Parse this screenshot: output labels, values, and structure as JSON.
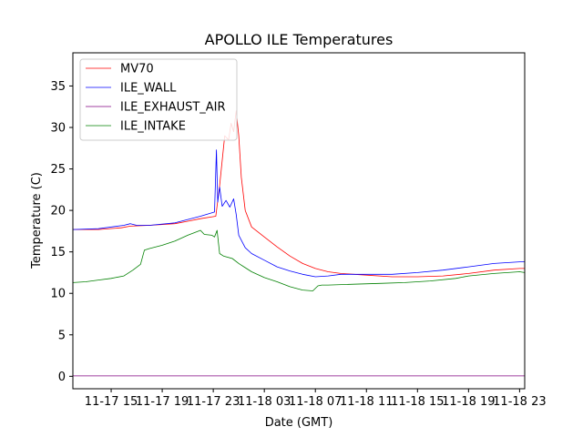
{
  "chart_data": {
    "type": "line",
    "title": "APOLLO ILE Temperatures",
    "xlabel": "Date (GMT)",
    "ylabel": "Temperature (C)",
    "x_unit": "hours since 11-17 12:00 GMT",
    "xlim": [
      0,
      35.4
    ],
    "ylim": [
      -1.5,
      39
    ],
    "grid": false,
    "legend": "upper-left",
    "x_ticks": [
      {
        "x": 3,
        "label": "11-17 15"
      },
      {
        "x": 7,
        "label": "11-17 19"
      },
      {
        "x": 11,
        "label": "11-17 23"
      },
      {
        "x": 15,
        "label": "11-18 03"
      },
      {
        "x": 19,
        "label": "11-18 07"
      },
      {
        "x": 23,
        "label": "11-18 11"
      },
      {
        "x": 27,
        "label": "11-18 15"
      },
      {
        "x": 31,
        "label": "11-18 19"
      },
      {
        "x": 35,
        "label": "11-18 23"
      }
    ],
    "y_ticks": [
      {
        "y": 0,
        "label": "0"
      },
      {
        "y": 5,
        "label": "5"
      },
      {
        "y": 10,
        "label": "10"
      },
      {
        "y": 15,
        "label": "15"
      },
      {
        "y": 20,
        "label": "20"
      },
      {
        "y": 25,
        "label": "25"
      },
      {
        "y": 30,
        "label": "30"
      },
      {
        "y": 35,
        "label": "35"
      }
    ],
    "series": [
      {
        "name": "MV70",
        "color": "#ff0000",
        "x": [
          0,
          2,
          3.8,
          4.5,
          6,
          8,
          9,
          10,
          11.2,
          11.5,
          11.9,
          12.2,
          12.4,
          12.6,
          12.8,
          13,
          13.2,
          13.5,
          14,
          15,
          16,
          17,
          18,
          19,
          20,
          21,
          23,
          25,
          27,
          29,
          31,
          33,
          35,
          35.4
        ],
        "y": [
          17.7,
          17.7,
          17.9,
          18.1,
          18.2,
          18.4,
          18.7,
          19.0,
          19.3,
          23,
          29,
          28.5,
          30.5,
          29.5,
          32,
          29,
          24,
          20,
          18,
          16.8,
          15.6,
          14.5,
          13.6,
          13.0,
          12.6,
          12.4,
          12.2,
          12.0,
          12.0,
          12.1,
          12.4,
          12.8,
          13.0,
          13.0
        ]
      },
      {
        "name": "ILE_WALL",
        "color": "#0000ff",
        "x": [
          0,
          2,
          4,
          4.5,
          5,
          6,
          8,
          9,
          10,
          11.1,
          11.25,
          11.35,
          11.5,
          11.7,
          12.0,
          12.3,
          12.6,
          12.8,
          13.0,
          13.5,
          14,
          15,
          16,
          17,
          18,
          19,
          20,
          21,
          23,
          25,
          27,
          29,
          31,
          33,
          35,
          35.4
        ],
        "y": [
          17.7,
          17.8,
          18.2,
          18.4,
          18.2,
          18.2,
          18.5,
          18.9,
          19.3,
          19.8,
          27.3,
          21,
          22.8,
          20.5,
          21.2,
          20.4,
          21.4,
          19.5,
          17,
          15.5,
          14.8,
          14.0,
          13.2,
          12.7,
          12.3,
          12.0,
          12.1,
          12.3,
          12.3,
          12.3,
          12.5,
          12.8,
          13.2,
          13.6,
          13.8,
          13.8
        ]
      },
      {
        "name": "ILE_EXHAUST_AIR",
        "color": "#800080",
        "x": [
          0,
          35.4
        ],
        "y": [
          0.05,
          0.05
        ]
      },
      {
        "name": "ILE_INTAKE",
        "color": "#008000",
        "x": [
          0,
          1,
          2,
          3,
          4,
          4.7,
          5.3,
          5.6,
          6,
          7,
          8,
          9,
          10,
          10.3,
          10.9,
          11.1,
          11.3,
          11.5,
          11.8,
          12.5,
          13,
          13.5,
          14,
          15,
          16,
          17,
          18,
          18.8,
          19.2,
          19.5,
          20,
          22,
          24,
          26,
          28,
          30,
          31,
          33,
          35,
          35.4
        ],
        "y": [
          11.3,
          11.4,
          11.6,
          11.8,
          12.1,
          12.8,
          13.5,
          15.2,
          15.4,
          15.8,
          16.3,
          17.0,
          17.6,
          17.1,
          17.0,
          16.8,
          17.6,
          14.8,
          14.5,
          14.2,
          13.6,
          13.1,
          12.6,
          11.9,
          11.4,
          10.8,
          10.4,
          10.3,
          10.9,
          11.0,
          11.0,
          11.1,
          11.2,
          11.3,
          11.5,
          11.8,
          12.1,
          12.4,
          12.6,
          12.5
        ]
      }
    ]
  }
}
